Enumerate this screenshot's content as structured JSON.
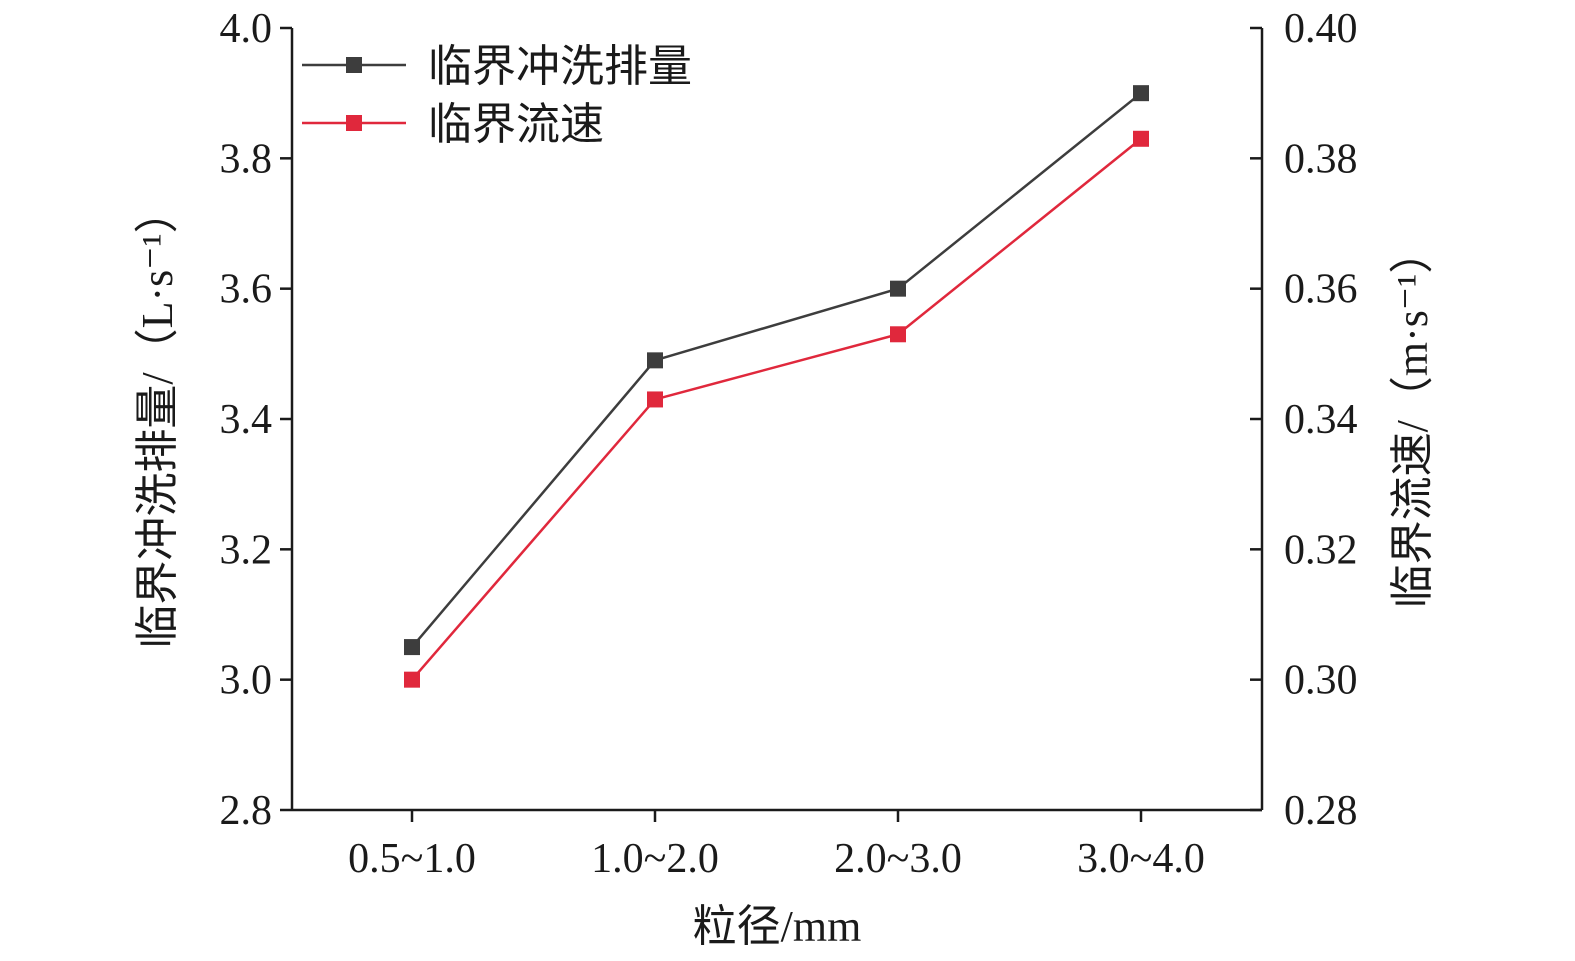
{
  "chart_data": {
    "type": "line",
    "categories": [
      "0.5~1.0",
      "1.0~2.0",
      "2.0~3.0",
      "3.0~4.0"
    ],
    "xlabel": "粒径/mm",
    "y_left": {
      "label": "临界冲洗排量/",
      "unit": "（L·s⁻¹）",
      "lim": [
        2.8,
        4.0
      ],
      "ticks": [
        "2.8",
        "3.0",
        "3.2",
        "3.4",
        "3.6",
        "3.8",
        "4.0"
      ]
    },
    "y_right": {
      "label": "临界流速/",
      "unit": "（m·s⁻¹）",
      "lim": [
        0.28,
        0.4
      ],
      "ticks": [
        "0.28",
        "0.30",
        "0.32",
        "0.34",
        "0.36",
        "0.38",
        "0.40"
      ]
    },
    "series": [
      {
        "name": "临界冲洗排量",
        "axis": "left",
        "color": "#3d3d3d",
        "marker": "square",
        "values": [
          3.05,
          3.49,
          3.6,
          3.9
        ]
      },
      {
        "name": "临界流速",
        "axis": "right",
        "color": "#e0283c",
        "marker": "square",
        "values": [
          0.3,
          0.343,
          0.353,
          0.383
        ]
      }
    ],
    "legend_position": "top-left",
    "grid": false
  }
}
